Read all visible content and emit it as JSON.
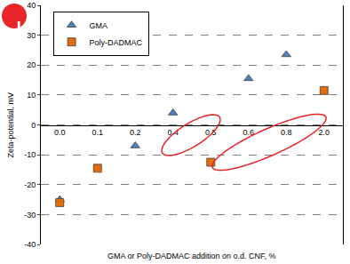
{
  "chart_data": {
    "type": "scatter",
    "x_label": "GMA or Poly-DADMAC addition on o.d. CNF, %",
    "y_label": "Zeta-potential, mV",
    "categories": [
      "0.0",
      "0.1",
      "0.2",
      "0.4",
      "0.5",
      "0.6",
      "0.8",
      "2.0"
    ],
    "series": [
      {
        "name": "GMA",
        "color": "#4f81bd",
        "marker": "triangle-up",
        "values": [
          -25,
          null,
          -7,
          4,
          null,
          15.5,
          23.5,
          null
        ]
      },
      {
        "name": "Poly-DADMAC",
        "color": "#e46c0a",
        "marker": "square",
        "values": [
          -26,
          -14.5,
          null,
          null,
          -12.5,
          null,
          null,
          11.5
        ]
      }
    ],
    "ylim": [
      -40,
      40
    ],
    "yticks": [
      -40,
      -30,
      -20,
      -10,
      0,
      10,
      20,
      30,
      40
    ],
    "grid": true,
    "legend": "top-left",
    "annotations": [
      "!"
    ]
  }
}
